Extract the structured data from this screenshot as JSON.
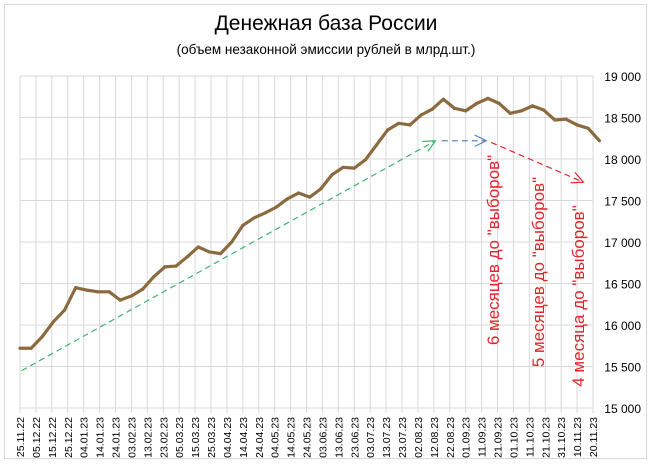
{
  "chart_data": {
    "type": "line",
    "title": "Денежная база России",
    "subtitle": "(объем незаконной эмиссии рублей в млрд.шт.)",
    "xlabel": "",
    "ylabel": "",
    "y_axis_position": "right",
    "ylim": [
      15000,
      19000
    ],
    "yticks": [
      15000,
      15500,
      16000,
      16500,
      17000,
      17500,
      18000,
      18500,
      19000
    ],
    "ytick_labels": [
      "15 000",
      "15 500",
      "16 000",
      "16 500",
      "17 000",
      "17 500",
      "18 000",
      "18 500",
      "19 000"
    ],
    "xtick_labels": [
      "25.11.22",
      "05.12.22",
      "15.12.22",
      "25.12.22",
      "04.01.23",
      "14.01.23",
      "24.01.23",
      "03.02.23",
      "13.02.23",
      "23.02.23",
      "05.03.23",
      "15.03.23",
      "25.03.23",
      "04.04.23",
      "14.04.23",
      "24.04.23",
      "04.05.23",
      "14.05.23",
      "24.05.23",
      "03.06.23",
      "13.06.23",
      "23.06.23",
      "03.07.23",
      "13.07.23",
      "23.07.23",
      "02.08.23",
      "12.08.23",
      "22.08.23",
      "01.09.23",
      "11.09.23",
      "21.09.23",
      "01.10.23",
      "11.10.23",
      "21.10.23",
      "31.10.23",
      "10.11.23",
      "20.11.23"
    ],
    "xtick_step_days": 10,
    "grid": true,
    "series": [
      {
        "name": "Денежная база",
        "color": "#8c6a3f",
        "start_date": "25.11.22",
        "step_days": 7,
        "values": [
          15720,
          15720,
          15860,
          16040,
          16180,
          16450,
          16420,
          16400,
          16400,
          16300,
          16350,
          16430,
          16580,
          16700,
          16710,
          16820,
          16940,
          16880,
          16860,
          17000,
          17200,
          17290,
          17350,
          17420,
          17520,
          17590,
          17540,
          17640,
          17810,
          17900,
          17890,
          17990,
          18170,
          18350,
          18430,
          18410,
          18530,
          18600,
          18720,
          18610,
          18580,
          18670,
          18730,
          18670,
          18550,
          18580,
          18640,
          18590,
          18470,
          18480,
          18410,
          18370,
          18220
        ]
      }
    ],
    "trend_arrows": [
      {
        "name": "growth-trend",
        "color": "#3cb371",
        "from": {
          "day": 1,
          "value": 15450
        },
        "to": {
          "day": 261,
          "value": 18220
        }
      },
      {
        "name": "plateau-trend",
        "color": "#5b86c2",
        "from": {
          "day": 265,
          "value": 18220
        },
        "to": {
          "day": 293,
          "value": 18220
        }
      },
      {
        "name": "decline-trend",
        "color": "#e0262b",
        "from": {
          "day": 296,
          "value": 18200
        },
        "to": {
          "day": 354,
          "value": 17720
        }
      }
    ],
    "annotations": [
      {
        "text": "6 месяцев до \"выборов\"",
        "color": "#e0262b"
      },
      {
        "text": "5 месяцев до \"выборов\"",
        "color": "#e0262b"
      },
      {
        "text": "4 месяца до \"выборов\"",
        "color": "#e0262b"
      }
    ]
  }
}
